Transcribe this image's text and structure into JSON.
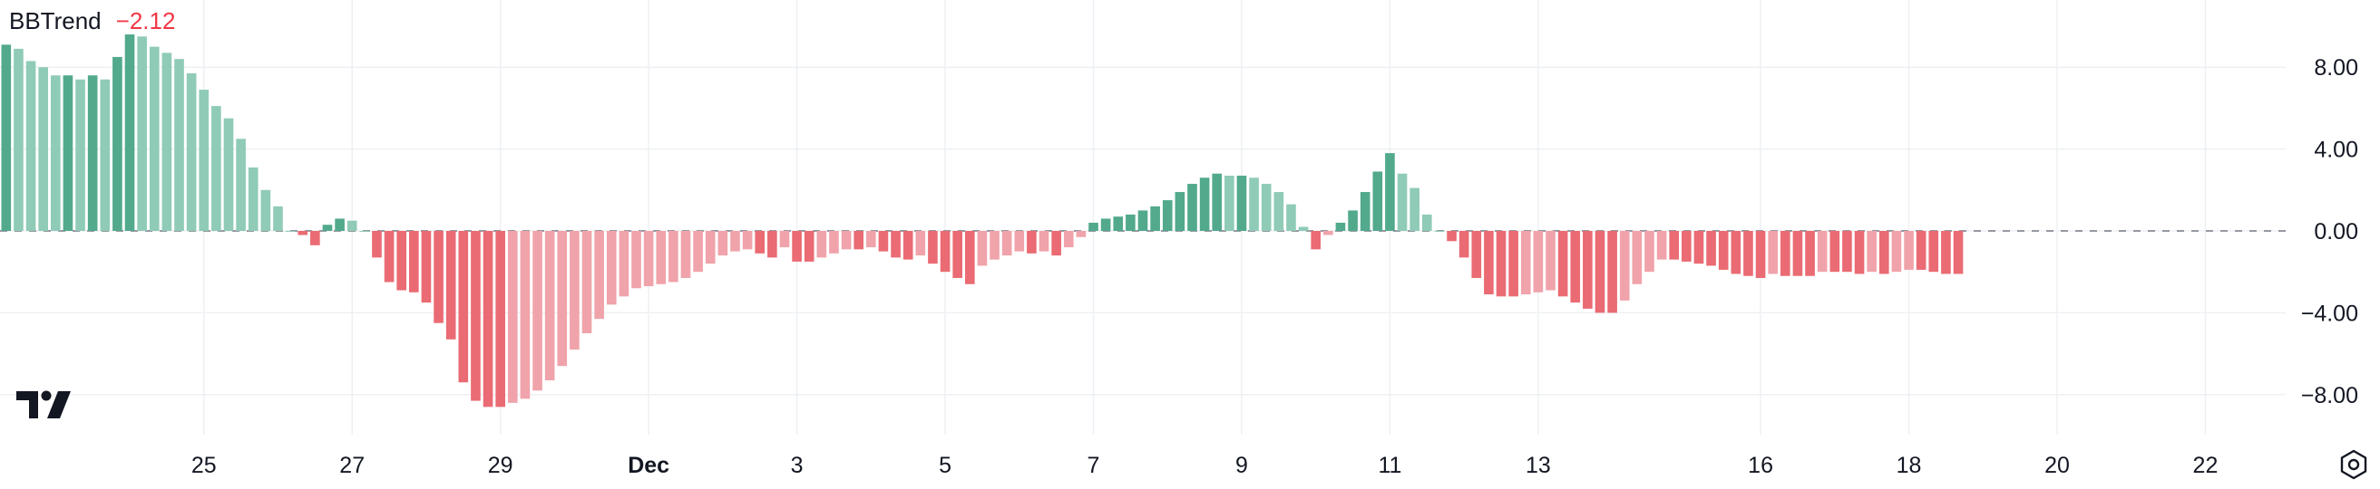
{
  "legend": {
    "name": "BBTrend",
    "value": "−2.12"
  },
  "icons": {
    "brand": "tradingview-logo-icon",
    "settings": "settings-hexagon-icon"
  },
  "colors": {
    "pos_strong": "#52a98c",
    "pos_weak": "#8fcbb7",
    "neg_strong": "#ea6b73",
    "neg_weak": "#f0a3aa",
    "zero_line": "#9598a1",
    "grid": "#eef0f3",
    "text": "#131722"
  },
  "chart_data": {
    "type": "bar",
    "title": "",
    "xlabel": "",
    "ylabel": "",
    "ylim": [
      -10,
      11
    ],
    "y_ticks": [
      8,
      4,
      0,
      -4,
      -8
    ],
    "y_tick_labels": [
      "8.00",
      "4.00",
      "0.00",
      "−4.00",
      "−8.00"
    ],
    "x_tick_labels": [
      {
        "label": "25",
        "index": 16,
        "bold": false
      },
      {
        "label": "27",
        "index": 28,
        "bold": false
      },
      {
        "label": "29",
        "index": 40,
        "bold": false
      },
      {
        "label": "Dec",
        "index": 52,
        "bold": true
      },
      {
        "label": "3",
        "index": 64,
        "bold": false
      },
      {
        "label": "5",
        "index": 76,
        "bold": false
      },
      {
        "label": "7",
        "index": 88,
        "bold": false
      },
      {
        "label": "9",
        "index": 100,
        "bold": false
      },
      {
        "label": "11",
        "index": 112,
        "bold": false
      },
      {
        "label": "13",
        "index": 124,
        "bold": false
      },
      {
        "label": "16",
        "index": 142,
        "bold": false
      },
      {
        "label": "18",
        "index": 154,
        "bold": false
      },
      {
        "label": "20",
        "index": 166,
        "bold": false
      },
      {
        "label": "22",
        "index": 178,
        "bold": false
      }
    ],
    "total_slots": 185,
    "grid": true,
    "zero_line": "dashed",
    "values": [
      9.1,
      8.9,
      8.3,
      8.0,
      7.6,
      7.6,
      7.4,
      7.6,
      7.4,
      8.5,
      9.6,
      9.5,
      9.0,
      8.7,
      8.4,
      7.7,
      6.9,
      6.1,
      5.5,
      4.5,
      3.1,
      2.0,
      1.2,
      0.0,
      -0.2,
      -0.7,
      0.3,
      0.6,
      0.5,
      0.0,
      -1.3,
      -2.5,
      -2.9,
      -3.0,
      -3.5,
      -4.5,
      -5.3,
      -7.4,
      -8.3,
      -8.6,
      -8.6,
      -8.4,
      -8.2,
      -7.8,
      -7.3,
      -6.6,
      -5.8,
      -5.0,
      -4.3,
      -3.6,
      -3.2,
      -2.8,
      -2.7,
      -2.6,
      -2.5,
      -2.3,
      -2.0,
      -1.6,
      -1.2,
      -1.0,
      -0.9,
      -1.1,
      -1.3,
      -0.8,
      -1.5,
      -1.5,
      -1.3,
      -1.1,
      -0.9,
      -0.9,
      -0.8,
      -1.0,
      -1.3,
      -1.4,
      -1.2,
      -1.6,
      -2.0,
      -2.3,
      -2.6,
      -1.7,
      -1.4,
      -1.2,
      -1.0,
      -1.1,
      -1.0,
      -1.2,
      -0.8,
      -0.3,
      0.4,
      0.6,
      0.7,
      0.8,
      1.0,
      1.2,
      1.5,
      1.9,
      2.3,
      2.6,
      2.8,
      2.7,
      2.7,
      2.6,
      2.3,
      1.9,
      1.3,
      0.2,
      -0.9,
      -0.2,
      0.4,
      1.0,
      1.9,
      2.9,
      3.8,
      2.8,
      2.1,
      0.8,
      0.0,
      -0.5,
      -1.3,
      -2.3,
      -3.1,
      -3.2,
      -3.2,
      -3.1,
      -3.0,
      -2.9,
      -3.2,
      -3.5,
      -3.8,
      -4.0,
      -4.0,
      -3.4,
      -2.6,
      -2.0,
      -1.4,
      -1.4,
      -1.5,
      -1.6,
      -1.7,
      -1.9,
      -2.1,
      -2.2,
      -2.3,
      -2.1,
      -2.2,
      -2.2,
      -2.2,
      -2.0,
      -2.0,
      -2.0,
      -2.1,
      -2.0,
      -2.1,
      -2.0,
      -1.9,
      -1.9,
      -2.0,
      -2.1,
      -2.1
    ]
  }
}
